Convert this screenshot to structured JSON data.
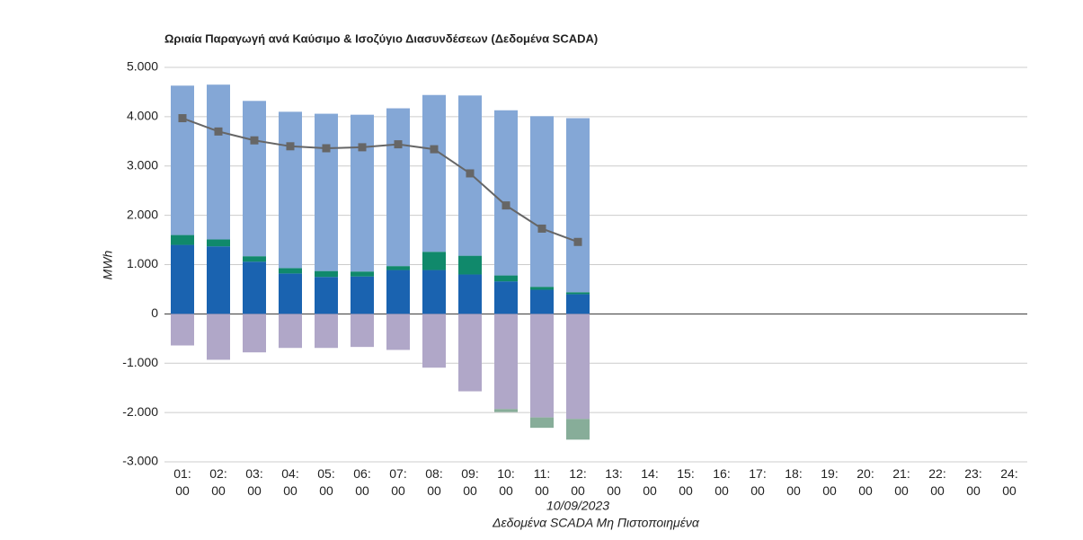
{
  "chart_data": {
    "type": "bar",
    "stacked": true,
    "title": "Ωριαία Παραγωγή ανά Καύσιμο & Ισοζύγιο Διασυνδέσεων (Δεδομένα SCADA)",
    "y_label": "MWh",
    "x_label": "10/09/2023",
    "subtitle": "Δεδομένα SCADA Μη Πιστοποιημένα",
    "categories": [
      "01:00",
      "02:00",
      "03:00",
      "04:00",
      "05:00",
      "06:00",
      "07:00",
      "08:00",
      "09:00",
      "10:00",
      "11:00",
      "12:00",
      "13:00",
      "14:00",
      "15:00",
      "16:00",
      "17:00",
      "18:00",
      "19:00",
      "20:00",
      "21:00",
      "22:00",
      "23:00",
      "24:00"
    ],
    "series": [
      {
        "color": "#1a63b0",
        "values": [
          1400,
          1370,
          1060,
          820,
          750,
          760,
          890,
          890,
          800,
          660,
          490,
          400,
          null,
          null,
          null,
          null,
          null,
          null,
          null,
          null,
          null,
          null,
          null,
          null
        ]
      },
      {
        "color": "#10896b",
        "values": [
          200,
          140,
          110,
          110,
          120,
          100,
          80,
          370,
          380,
          120,
          60,
          40,
          null,
          null,
          null,
          null,
          null,
          null,
          null,
          null,
          null,
          null,
          null,
          null
        ]
      },
      {
        "color": "#84a7d6",
        "values": [
          3030,
          3140,
          3150,
          3170,
          3190,
          3180,
          3200,
          3180,
          3250,
          3350,
          3460,
          3530,
          null,
          null,
          null,
          null,
          null,
          null,
          null,
          null,
          null,
          null,
          null,
          null
        ]
      },
      {
        "color": "#b0a7c8",
        "values": [
          -640,
          -930,
          -780,
          -690,
          -690,
          -670,
          -730,
          -1090,
          -1570,
          -1930,
          -2100,
          -2130,
          null,
          null,
          null,
          null,
          null,
          null,
          null,
          null,
          null,
          null,
          null,
          null
        ]
      },
      {
        "color": "#87ad99",
        "values": [
          null,
          null,
          null,
          null,
          null,
          null,
          null,
          null,
          null,
          -60,
          -210,
          -420,
          null,
          null,
          null,
          null,
          null,
          null,
          null,
          null,
          null,
          null,
          null,
          null
        ]
      },
      {
        "type": "line",
        "color": "#666666",
        "values": [
          3970,
          3700,
          3520,
          3400,
          3360,
          3380,
          3440,
          3340,
          2850,
          2200,
          1730,
          1460,
          null,
          null,
          null,
          null,
          null,
          null,
          null,
          null,
          null,
          null,
          null,
          null
        ]
      }
    ],
    "ylim": [
      -3000,
      5000
    ],
    "yticks": [
      {
        "value": -3000,
        "label": "-3.000"
      },
      {
        "value": -2000,
        "label": "-2.000"
      },
      {
        "value": -1000,
        "label": "-1.000"
      },
      0,
      {
        "value": 1000,
        "label": "1.000"
      },
      {
        "value": 2000,
        "label": "2.000"
      },
      {
        "value": 3000,
        "label": "3.000"
      },
      {
        "value": 4000,
        "label": "4.000"
      },
      {
        "value": 5000,
        "label": "5.000"
      }
    ],
    "grid": true
  }
}
